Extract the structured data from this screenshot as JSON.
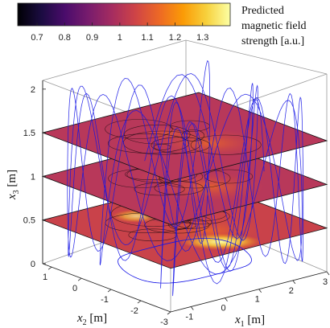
{
  "chart_data": {
    "type": "3d-surface-contour-slices",
    "colorbar": {
      "title_lines": [
        "Predicted",
        "magnetic field",
        "strength [a.u.]"
      ],
      "ticks": [
        "0.7",
        "0.8",
        "0.9",
        "1",
        "1.1",
        "1.2",
        "1.3"
      ],
      "range": [
        0.63,
        1.4
      ],
      "colormap": "inferno",
      "colormap_stops": [
        "#000004",
        "#1b0c41",
        "#4a0c6b",
        "#781c6d",
        "#a52c60",
        "#cf4446",
        "#ed6925",
        "#fb9b06",
        "#f7d13d",
        "#fcffa4"
      ]
    },
    "axes": {
      "x1": {
        "label": "x",
        "subscript": "1",
        "unit": " [m]",
        "ticks": [
          "-1",
          "0",
          "1",
          "2",
          "3"
        ],
        "range": [
          -1.6,
          3
        ]
      },
      "x2": {
        "label": "x",
        "subscript": "2",
        "unit": " [m]",
        "ticks": [
          "1",
          "0",
          "-1",
          "-2",
          "-3"
        ],
        "range": [
          1.3,
          -3
        ]
      },
      "x3": {
        "label": "x",
        "subscript": "3",
        "unit": " [m]",
        "ticks": [
          "0",
          "0.5",
          "1",
          "1.5",
          "2"
        ],
        "range": [
          0,
          2.1
        ]
      }
    },
    "slices": [
      {
        "height": 0.5
      },
      {
        "height": 1.0
      },
      {
        "height": 1.5
      }
    ],
    "trajectory": {
      "color": "#1414e6"
    },
    "grid": false
  }
}
